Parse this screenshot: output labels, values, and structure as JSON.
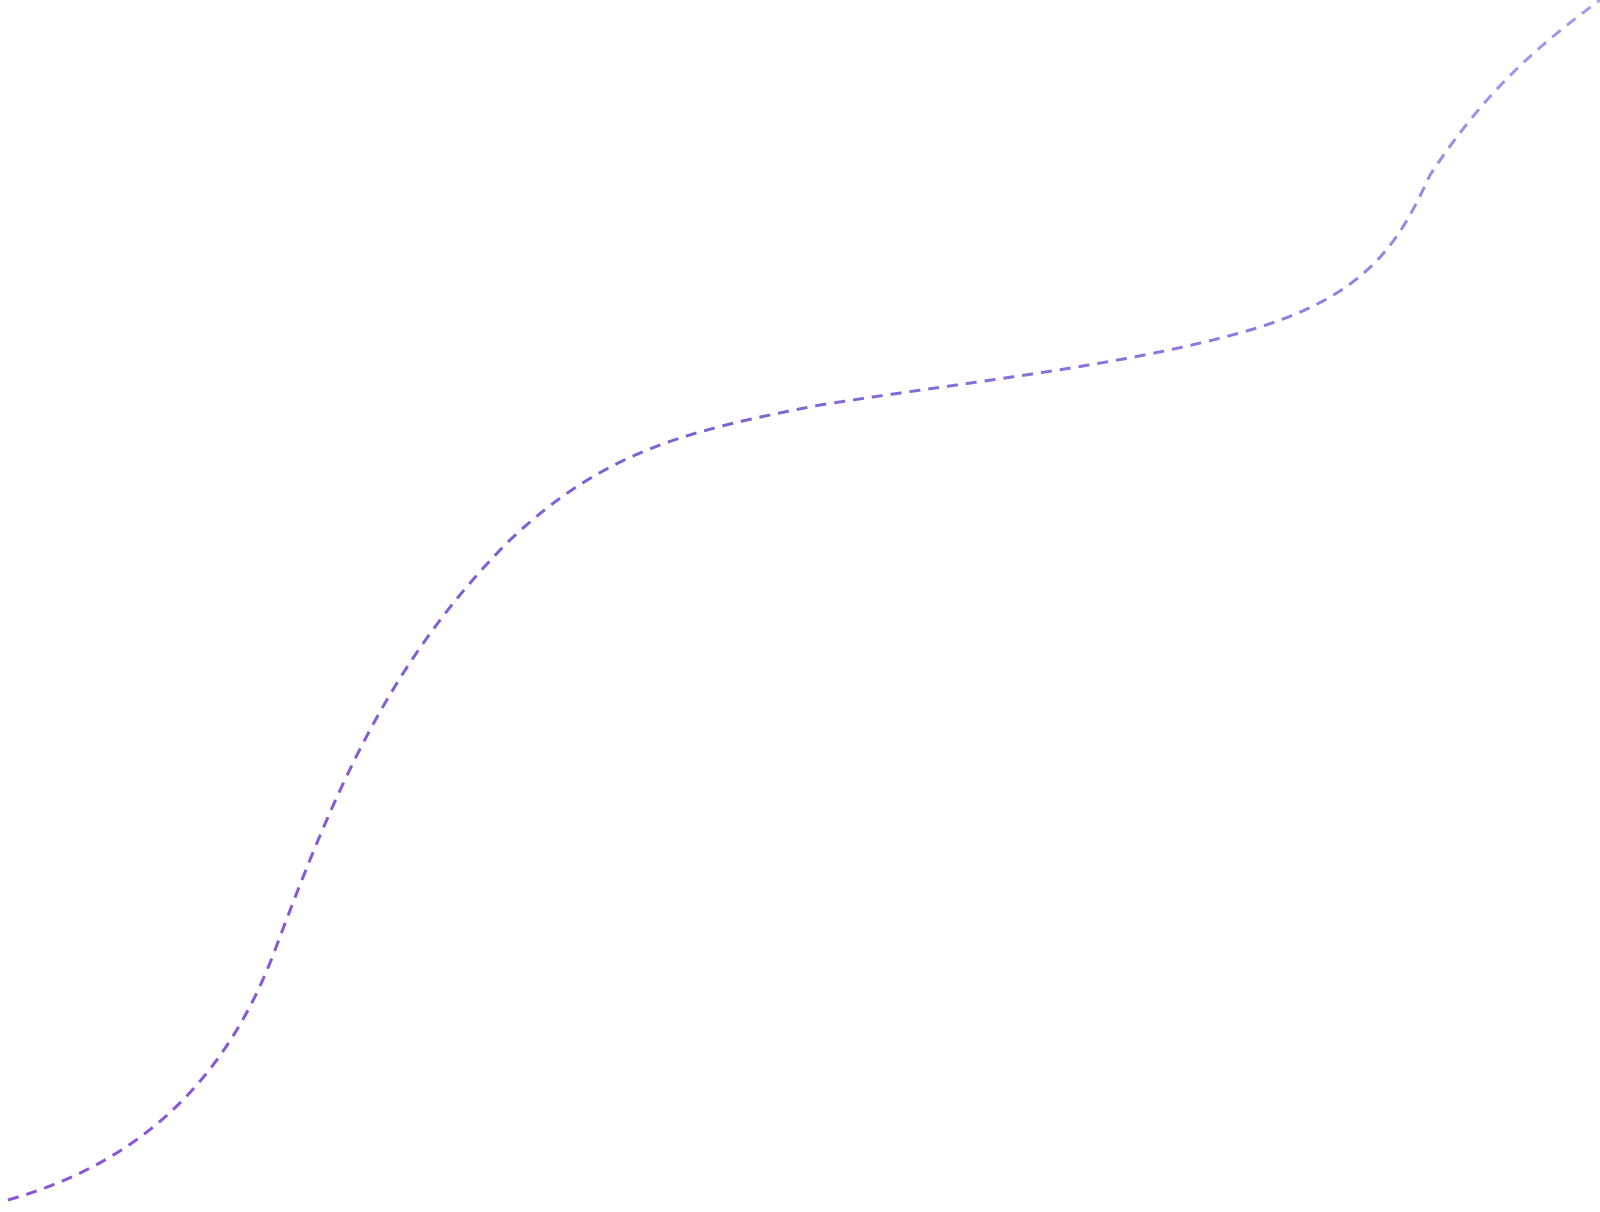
{
  "decoration": {
    "kind": "dashed-curve",
    "style": "dashed",
    "gradient": {
      "start_color": "#8a53d6",
      "mid_color": "#7b63d3",
      "end_color": "#a89aef"
    }
  }
}
